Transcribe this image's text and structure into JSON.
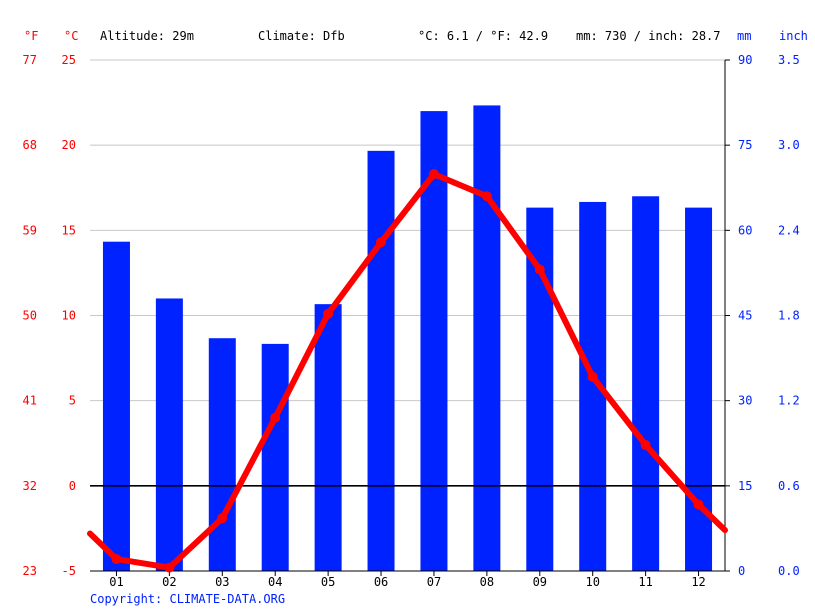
{
  "header": {
    "unit_f": "°F",
    "unit_c": "°C",
    "altitude": "Altitude: 29m",
    "climate": "Climate: Dfb",
    "temp_avg": "°C: 6.1 / °F: 42.9",
    "precip_total": "mm: 730 / inch: 28.7",
    "unit_mm": "mm",
    "unit_inch": "inch"
  },
  "copyright": "Copyright: CLIMATE-DATA.ORG",
  "colors": {
    "temp": "#ff0000",
    "precip": "#0022ff",
    "grid": "#c8c8c8",
    "zero": "#000000",
    "axis": "#000000"
  },
  "chart_data": {
    "type": "bar",
    "categories": [
      "01",
      "02",
      "03",
      "04",
      "05",
      "06",
      "07",
      "08",
      "09",
      "10",
      "11",
      "12"
    ],
    "series": [
      {
        "type": "bar",
        "axis": "right",
        "unit": "mm",
        "values": [
          58,
          48,
          41,
          40,
          47,
          74,
          81,
          82,
          64,
          65,
          66,
          64
        ]
      },
      {
        "type": "line",
        "axis": "left",
        "unit": "°C",
        "values": [
          -4.3,
          -4.8,
          -1.9,
          4.0,
          10.1,
          14.3,
          18.3,
          17.0,
          12.7,
          6.4,
          2.4,
          -1.1
        ]
      }
    ],
    "temp_line_ends": {
      "left": -2.8,
      "right": -2.6
    },
    "ylim_c": [
      -5,
      25
    ],
    "yticks_c": [
      "-5",
      "0",
      "5",
      "10",
      "15",
      "20",
      "25"
    ],
    "yticks_f": [
      "23",
      "32",
      "41",
      "50",
      "59",
      "68",
      "77"
    ],
    "ylim_mm": [
      0,
      90
    ],
    "yticks_mm": [
      "0",
      "15",
      "30",
      "45",
      "60",
      "75",
      "90"
    ],
    "yticks_inch": [
      "0.0",
      "0.6",
      "1.2",
      "1.8",
      "2.4",
      "3.0",
      "3.5"
    ],
    "grid": true,
    "legend": "none"
  }
}
